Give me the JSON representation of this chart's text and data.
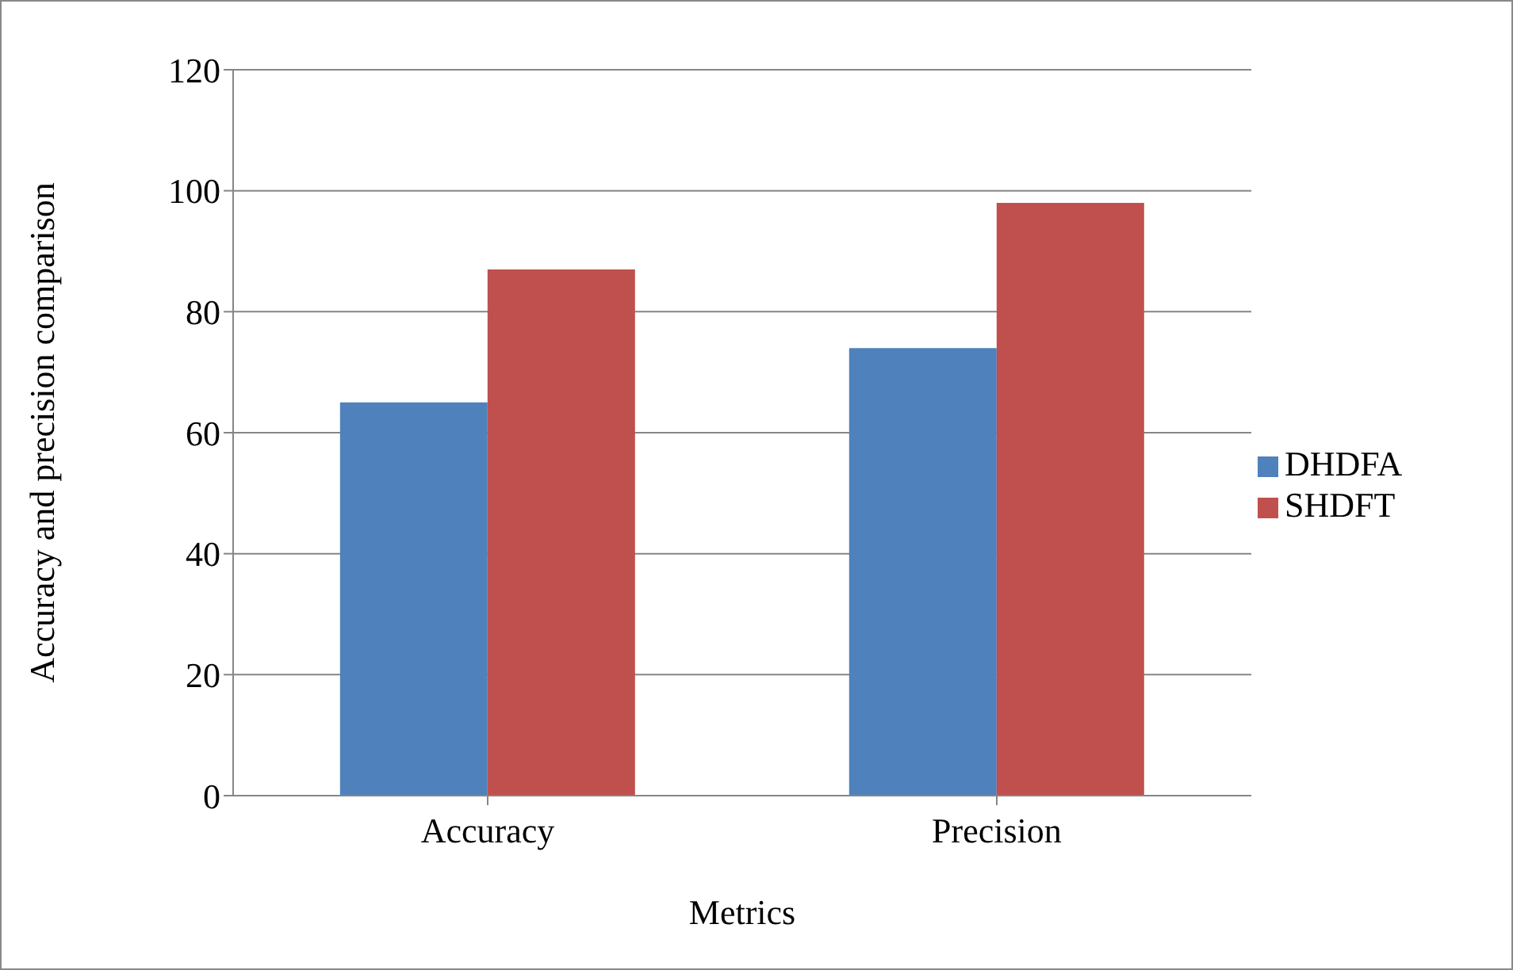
{
  "chart_data": {
    "type": "bar",
    "xlabel": "Metrics",
    "ylabel": "Accuracy and precision comparison",
    "categories": [
      "Accuracy",
      "Precision"
    ],
    "series": [
      {
        "name": "DHDFA",
        "color": "#4f81bd",
        "values": [
          65,
          74
        ]
      },
      {
        "name": "SHDFT",
        "color": "#c0504d",
        "values": [
          87,
          98
        ]
      }
    ],
    "ylim": [
      0,
      120
    ],
    "yticks": [
      0,
      20,
      40,
      60,
      80,
      100,
      120
    ],
    "grid": "y",
    "legend": "right"
  }
}
